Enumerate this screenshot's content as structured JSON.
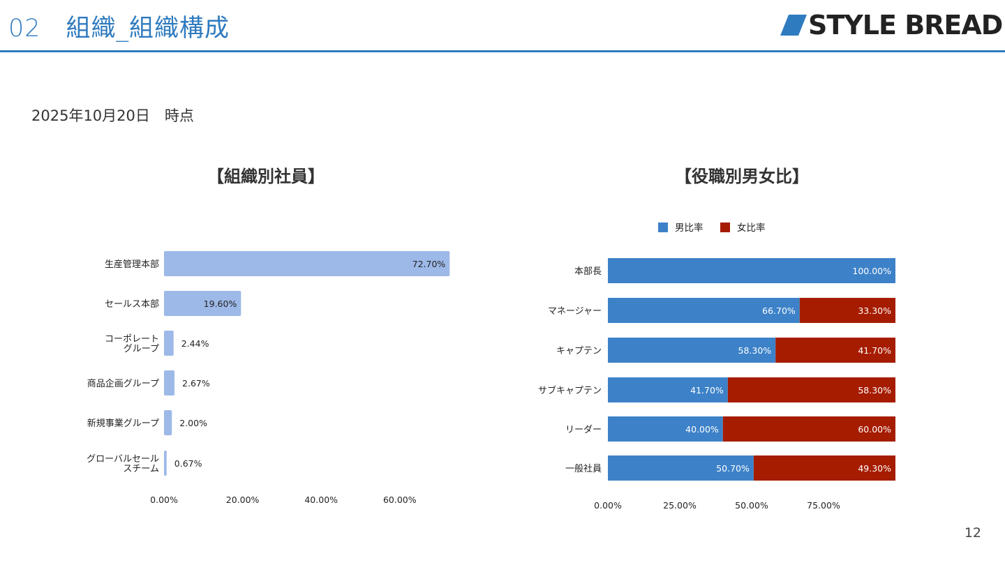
{
  "header": {
    "section_number": "02",
    "title": "組織_組織構成",
    "logo_text": "STYLE BREAD",
    "accent_color": "#2f7bbf"
  },
  "date_label": "2025年10月20日　時点",
  "page_number": "12",
  "chart_data": [
    {
      "type": "bar",
      "orientation": "horizontal",
      "title": "【組織別社員】",
      "categories": [
        [
          "生産管理本部"
        ],
        [
          "セールス本部"
        ],
        [
          "コーポレート",
          "グループ"
        ],
        [
          "商品企画グループ"
        ],
        [
          "新規事業グループ"
        ],
        [
          "グローバルセール",
          "スチーム"
        ]
      ],
      "values": [
        72.7,
        19.6,
        2.44,
        2.67,
        2.0,
        0.67
      ],
      "value_labels": [
        "72.70%",
        "19.60%",
        "2.44%",
        "2.67%",
        "2.00%",
        "0.67%"
      ],
      "xticks": [
        0,
        20,
        40,
        60
      ],
      "xtick_labels": [
        "0.00%",
        "20.00%",
        "40.00%",
        "60.00%"
      ],
      "xlim": [
        0,
        80
      ],
      "color": "#9db9e8",
      "grid": false
    },
    {
      "type": "bar",
      "orientation": "horizontal",
      "stacked": true,
      "title": "【役職別男女比】",
      "categories": [
        "本部長",
        "マネージャー",
        "キャプテン",
        "サブキャプテン",
        "リーダー",
        "一般社員"
      ],
      "series": [
        {
          "name": "男比率",
          "color": "#3d82c8",
          "values": [
            100.0,
            66.7,
            58.3,
            41.7,
            40.0,
            50.7
          ],
          "labels": [
            "100.00%",
            "66.70%",
            "58.30%",
            "41.70%",
            "40.00%",
            "50.70%"
          ]
        },
        {
          "name": "女比率",
          "color": "#a61c00",
          "values": [
            0,
            33.3,
            41.7,
            58.3,
            60.0,
            49.3
          ],
          "labels": [
            "",
            "33.30%",
            "41.70%",
            "58.30%",
            "60.00%",
            "49.30%"
          ]
        }
      ],
      "xticks": [
        0,
        25,
        50,
        75
      ],
      "xtick_labels": [
        "0.00%",
        "25.00%",
        "50.00%",
        "75.00%"
      ],
      "xlim": [
        0,
        100
      ],
      "legend_position": "top-center",
      "grid": false
    }
  ]
}
